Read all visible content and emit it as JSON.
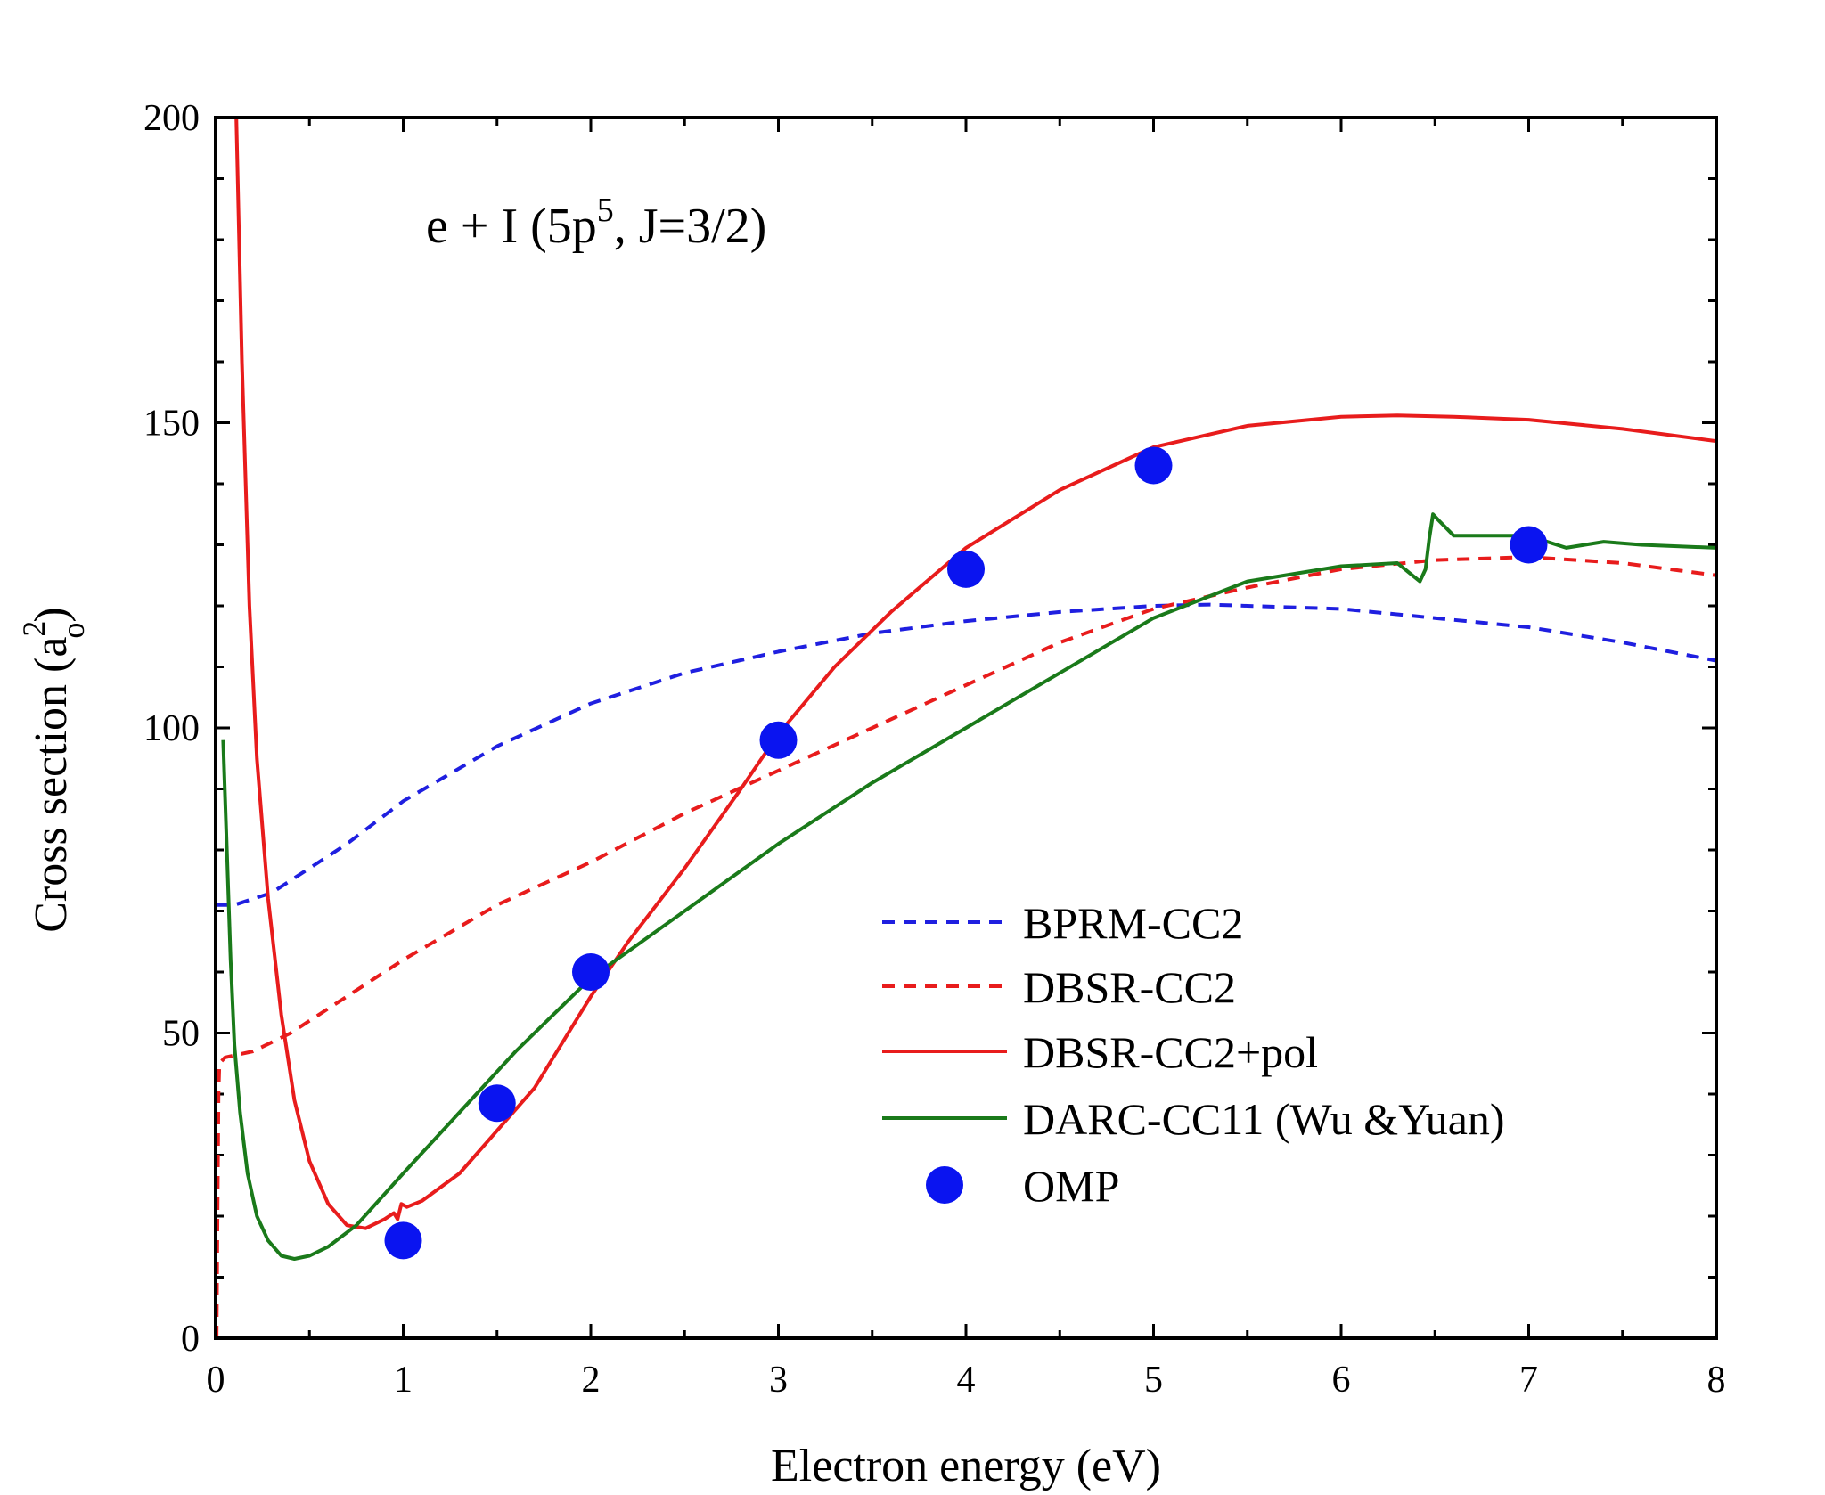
{
  "chart_data": {
    "type": "line",
    "title_prefix": "e + I (5p",
    "title_sup": "5",
    "title_suffix": ",  J=3/2)",
    "xlabel": "Electron energy (eV)",
    "ylabel_main": "Cross section (a",
    "ylabel_sup": "2",
    "ylabel_sub": "o",
    "ylabel_close": ")",
    "xlim": [
      0,
      8
    ],
    "ylim": [
      0,
      200
    ],
    "xticks": [
      "0",
      "1",
      "2",
      "3",
      "4",
      "5",
      "6",
      "7",
      "8"
    ],
    "yticks": [
      "0",
      "50",
      "100",
      "150",
      "200"
    ],
    "legend_position": "lower-right",
    "series": [
      {
        "name": "BPRM-CC2",
        "color": "#1f1fe0",
        "style": "dashed",
        "points": [
          [
            0.0,
            71
          ],
          [
            0.1,
            71
          ],
          [
            0.3,
            73
          ],
          [
            0.5,
            77
          ],
          [
            0.7,
            81
          ],
          [
            1.0,
            88
          ],
          [
            1.5,
            97
          ],
          [
            2.0,
            104
          ],
          [
            2.5,
            109
          ],
          [
            3.0,
            112.5
          ],
          [
            3.5,
            115.5
          ],
          [
            4.0,
            117.5
          ],
          [
            4.5,
            119
          ],
          [
            5.0,
            120
          ],
          [
            5.3,
            120.2
          ],
          [
            5.5,
            120
          ],
          [
            6.0,
            119.5
          ],
          [
            6.5,
            118
          ],
          [
            7.0,
            116.5
          ],
          [
            7.5,
            114
          ],
          [
            8.0,
            111
          ]
        ]
      },
      {
        "name": "DBSR-CC2",
        "color": "#e81c1c",
        "style": "dashed",
        "points": [
          [
            0.005,
            0
          ],
          [
            0.01,
            20
          ],
          [
            0.015,
            40
          ],
          [
            0.02,
            45
          ],
          [
            0.05,
            46
          ],
          [
            0.2,
            47
          ],
          [
            0.4,
            50
          ],
          [
            0.6,
            54
          ],
          [
            1.0,
            62
          ],
          [
            1.5,
            71
          ],
          [
            2.0,
            78
          ],
          [
            2.5,
            86
          ],
          [
            3.0,
            93
          ],
          [
            3.5,
            100
          ],
          [
            4.0,
            107
          ],
          [
            4.5,
            114
          ],
          [
            5.0,
            119.5
          ],
          [
            5.5,
            123
          ],
          [
            6.0,
            126
          ],
          [
            6.5,
            127.5
          ],
          [
            7.0,
            128
          ],
          [
            7.5,
            127
          ],
          [
            8.0,
            125
          ]
        ]
      },
      {
        "name": "DBSR-CC2+pol",
        "color": "#e81c1c",
        "style": "solid",
        "points": [
          [
            0.11,
            200
          ],
          [
            0.14,
            160
          ],
          [
            0.18,
            120
          ],
          [
            0.22,
            95
          ],
          [
            0.28,
            72
          ],
          [
            0.35,
            53
          ],
          [
            0.42,
            39
          ],
          [
            0.5,
            29
          ],
          [
            0.6,
            22
          ],
          [
            0.7,
            18.5
          ],
          [
            0.8,
            18
          ],
          [
            0.9,
            19.5
          ],
          [
            0.95,
            20.5
          ],
          [
            0.97,
            19.5
          ],
          [
            0.99,
            22
          ],
          [
            1.02,
            21.5
          ],
          [
            1.1,
            22.5
          ],
          [
            1.3,
            27
          ],
          [
            1.5,
            34
          ],
          [
            1.7,
            41
          ],
          [
            2.0,
            56
          ],
          [
            2.2,
            65
          ],
          [
            2.5,
            77
          ],
          [
            2.8,
            90
          ],
          [
            3.0,
            99
          ],
          [
            3.3,
            110
          ],
          [
            3.6,
            119
          ],
          [
            4.0,
            129.5
          ],
          [
            4.5,
            139
          ],
          [
            5.0,
            146
          ],
          [
            5.5,
            149.5
          ],
          [
            6.0,
            151
          ],
          [
            6.3,
            151.2
          ],
          [
            6.6,
            151
          ],
          [
            7.0,
            150.5
          ],
          [
            7.5,
            149
          ],
          [
            8.0,
            147
          ]
        ]
      },
      {
        "name": "DARC-CC11 (Wu &Yuan)",
        "color": "#1a7a1a",
        "style": "solid",
        "points": [
          [
            0.04,
            98
          ],
          [
            0.06,
            80
          ],
          [
            0.08,
            62
          ],
          [
            0.1,
            48
          ],
          [
            0.13,
            37
          ],
          [
            0.17,
            27
          ],
          [
            0.22,
            20
          ],
          [
            0.28,
            16
          ],
          [
            0.35,
            13.5
          ],
          [
            0.42,
            13
          ],
          [
            0.5,
            13.5
          ],
          [
            0.6,
            15
          ],
          [
            0.75,
            18.5
          ],
          [
            1.0,
            27
          ],
          [
            1.3,
            37
          ],
          [
            1.6,
            47
          ],
          [
            2.0,
            59
          ],
          [
            2.5,
            70
          ],
          [
            3.0,
            81
          ],
          [
            3.5,
            91
          ],
          [
            4.0,
            100
          ],
          [
            4.5,
            109
          ],
          [
            5.0,
            118
          ],
          [
            5.5,
            124
          ],
          [
            6.0,
            126.5
          ],
          [
            6.3,
            127
          ],
          [
            6.38,
            125
          ],
          [
            6.42,
            124
          ],
          [
            6.45,
            126
          ],
          [
            6.47,
            131
          ],
          [
            6.49,
            135
          ],
          [
            6.52,
            134
          ],
          [
            6.6,
            131.5
          ],
          [
            7.0,
            131.5
          ],
          [
            7.1,
            130.5
          ],
          [
            7.2,
            129.5
          ],
          [
            7.3,
            130
          ],
          [
            7.4,
            130.5
          ],
          [
            7.6,
            130
          ],
          [
            8.0,
            129.5
          ]
        ]
      }
    ],
    "markers": {
      "name": "OMP",
      "color": "#0a14f0",
      "points": [
        [
          1.0,
          16
        ],
        [
          1.5,
          38.5
        ],
        [
          2.0,
          60
        ],
        [
          3.0,
          98
        ],
        [
          4.0,
          126
        ],
        [
          5.0,
          143
        ],
        [
          7.0,
          130
        ]
      ]
    }
  }
}
